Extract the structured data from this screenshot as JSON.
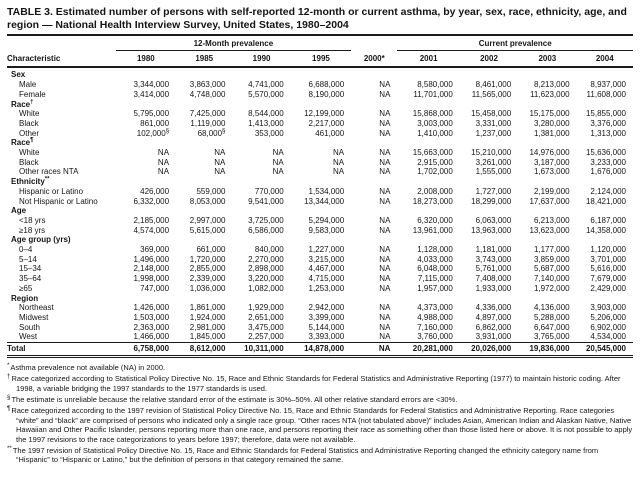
{
  "table": {
    "title": "TABLE 3. Estimated number of persons with self-reported 12-month or current asthma, by year, sex, race, ethnicity, age, and region — National Health Interview Survey, United States, 1980–2004",
    "col_groups": [
      {
        "label": "12-Month prevalence"
      },
      {
        "label": "Current prevalence"
      }
    ],
    "columns": [
      "Characteristic",
      "1980",
      "1985",
      "1990",
      "1995",
      "2000*",
      "2001",
      "2002",
      "2003",
      "2004"
    ],
    "rows": [
      {
        "type": "section",
        "label": "Sex"
      },
      {
        "type": "data",
        "label": "Male",
        "values": [
          "3,344,000",
          "3,863,000",
          "4,741,000",
          "6,688,000",
          "NA",
          "8,580,000",
          "8,461,000",
          "8,213,000",
          "8,937,000"
        ]
      },
      {
        "type": "data",
        "label": "Female",
        "values": [
          "3,414,000",
          "4,748,000",
          "5,570,000",
          "8,190,000",
          "NA",
          "11,701,000",
          "11,565,000",
          "11,623,000",
          "11,608,000"
        ]
      },
      {
        "type": "section",
        "label": "Race",
        "sup": "†"
      },
      {
        "type": "data",
        "label": "White",
        "values": [
          "5,795,000",
          "7,425,000",
          "8,544,000",
          "12,199,000",
          "NA",
          "15,868,000",
          "15,458,000",
          "15,175,000",
          "15,855,000"
        ]
      },
      {
        "type": "data",
        "label": "Black",
        "values": [
          "861,000",
          "1,119,000",
          "1,413,000",
          "2,217,000",
          "NA",
          "3,003,000",
          "3,331,000",
          "3,280,000",
          "3,376,000"
        ]
      },
      {
        "type": "data",
        "label": "Other",
        "values": [
          "102,000§",
          "68,000§",
          "353,000",
          "461,000",
          "NA",
          "1,410,000",
          "1,237,000",
          "1,381,000",
          "1,313,000"
        ]
      },
      {
        "type": "section",
        "label": "Race",
        "sup": "¶"
      },
      {
        "type": "data",
        "label": "White",
        "values": [
          "NA",
          "NA",
          "NA",
          "NA",
          "NA",
          "15,663,000",
          "15,210,000",
          "14,976,000",
          "15,636,000"
        ]
      },
      {
        "type": "data",
        "label": "Black",
        "values": [
          "NA",
          "NA",
          "NA",
          "NA",
          "NA",
          "2,915,000",
          "3,261,000",
          "3,187,000",
          "3,233,000"
        ]
      },
      {
        "type": "data",
        "label": "Other races NTA",
        "values": [
          "NA",
          "NA",
          "NA",
          "NA",
          "NA",
          "1,702,000",
          "1,555,000",
          "1,673,000",
          "1,676,000"
        ]
      },
      {
        "type": "section",
        "label": "Ethnicity",
        "sup": "**"
      },
      {
        "type": "data",
        "label": "Hispanic or Latino",
        "values": [
          "426,000",
          "559,000",
          "770,000",
          "1,534,000",
          "NA",
          "2,008,000",
          "1,727,000",
          "2,199,000",
          "2,124,000"
        ]
      },
      {
        "type": "data",
        "label": "Not Hispanic or Latino",
        "values": [
          "6,332,000",
          "8,053,000",
          "9,541,000",
          "13,344,000",
          "NA",
          "18,273,000",
          "18,299,000",
          "17,637,000",
          "18,421,000"
        ]
      },
      {
        "type": "section",
        "label": "Age"
      },
      {
        "type": "data",
        "label": "<18 yrs",
        "values": [
          "2,185,000",
          "2,997,000",
          "3,725,000",
          "5,294,000",
          "NA",
          "6,320,000",
          "6,063,000",
          "6,213,000",
          "6,187,000"
        ]
      },
      {
        "type": "data",
        "label": "≥18 yrs",
        "values": [
          "4,574,000",
          "5,615,000",
          "6,586,000",
          "9,583,000",
          "NA",
          "13,961,000",
          "13,963,000",
          "13,623,000",
          "14,358,000"
        ]
      },
      {
        "type": "section",
        "label": "Age group (yrs)"
      },
      {
        "type": "data",
        "label": "0–4",
        "values": [
          "369,000",
          "661,000",
          "840,000",
          "1,227,000",
          "NA",
          "1,128,000",
          "1,181,000",
          "1,177,000",
          "1,120,000"
        ]
      },
      {
        "type": "data",
        "label": "5–14",
        "values": [
          "1,496,000",
          "1,720,000",
          "2,270,000",
          "3,215,000",
          "NA",
          "4,033,000",
          "3,743,000",
          "3,859,000",
          "3,701,000"
        ]
      },
      {
        "type": "data",
        "label": "15–34",
        "values": [
          "2,148,000",
          "2,855,000",
          "2,898,000",
          "4,467,000",
          "NA",
          "6,048,000",
          "5,761,000",
          "5,687,000",
          "5,616,000"
        ]
      },
      {
        "type": "data",
        "label": "35–64",
        "values": [
          "1,998,000",
          "2,339,000",
          "3,220,000",
          "4,715,000",
          "NA",
          "7,115,000",
          "7,408,000",
          "7,140,000",
          "7,679,000"
        ]
      },
      {
        "type": "data",
        "label": "≥65",
        "values": [
          "747,000",
          "1,036,000",
          "1,082,000",
          "1,253,000",
          "NA",
          "1,957,000",
          "1,933,000",
          "1,972,000",
          "2,429,000"
        ]
      },
      {
        "type": "section",
        "label": "Region"
      },
      {
        "type": "data",
        "label": "Northeast",
        "values": [
          "1,426,000",
          "1,861,000",
          "1,929,000",
          "2,942,000",
          "NA",
          "4,373,000",
          "4,336,000",
          "4,136,000",
          "3,903,000"
        ]
      },
      {
        "type": "data",
        "label": "Midwest",
        "values": [
          "1,503,000",
          "1,924,000",
          "2,651,000",
          "3,399,000",
          "NA",
          "4,988,000",
          "4,897,000",
          "5,288,000",
          "5,206,000"
        ]
      },
      {
        "type": "data",
        "label": "South",
        "values": [
          "2,363,000",
          "2,981,000",
          "3,475,000",
          "5,144,000",
          "NA",
          "7,160,000",
          "6,862,000",
          "6,647,000",
          "6,902,000"
        ]
      },
      {
        "type": "data",
        "label": "West",
        "values": [
          "1,466,000",
          "1,845,000",
          "2,257,000",
          "3,393,000",
          "NA",
          "3,760,000",
          "3,931,000",
          "3,765,000",
          "4,534,000"
        ]
      },
      {
        "type": "total",
        "label": "Total",
        "values": [
          "6,758,000",
          "8,612,000",
          "10,311,000",
          "14,878,000",
          "NA",
          "20,281,000",
          "20,026,000",
          "19,836,000",
          "20,545,000"
        ]
      }
    ],
    "footnotes": [
      {
        "marker": "*",
        "text": "Asthma prevalence not available (NA) in 2000."
      },
      {
        "marker": "†",
        "text": "Race categorized according to Statistical Policy Directive No. 15, Race and Ethnic Standards for Federal Statistics and Administrative Reporting (1977) to maintain historic coding. After 1998, a variable bridging the 1997 standards to the 1977 standards is used."
      },
      {
        "marker": "§",
        "text": "The estimate is unreliable because the relative standard error of the estimate is 30%–50%. All other relative standard errors are <30%."
      },
      {
        "marker": "¶",
        "text": "Race categorized according to the 1997 revision of Statistical Policy Directive No. 15, Race and Ethnic Standards for Federal Statistics and Administrative Reporting. Race categories “white” and “black” are comprised of persons who indicated only a single race group. “Other races NTA (not tabulated above)” includes Asian, American Indian and Alaskan Native, Native Hawaiian and Other Pacific Islander, persons reporting more than one race, and persons reporting their race as something other than those listed here or above. It is not possible to apply the 1997 revisions to the race categorizations to years before 1997; therefore, data were not available."
      },
      {
        "marker": "**",
        "text": "The 1997 revision of Statistical Policy Directive No. 15, Race and Ethnic Standards for Federal Statistics and Administrative Reporting changed the ethnicity category name from “Hispanic” to “Hispanic or Latino,” but the definition of persons in that category remained the same."
      }
    ]
  }
}
